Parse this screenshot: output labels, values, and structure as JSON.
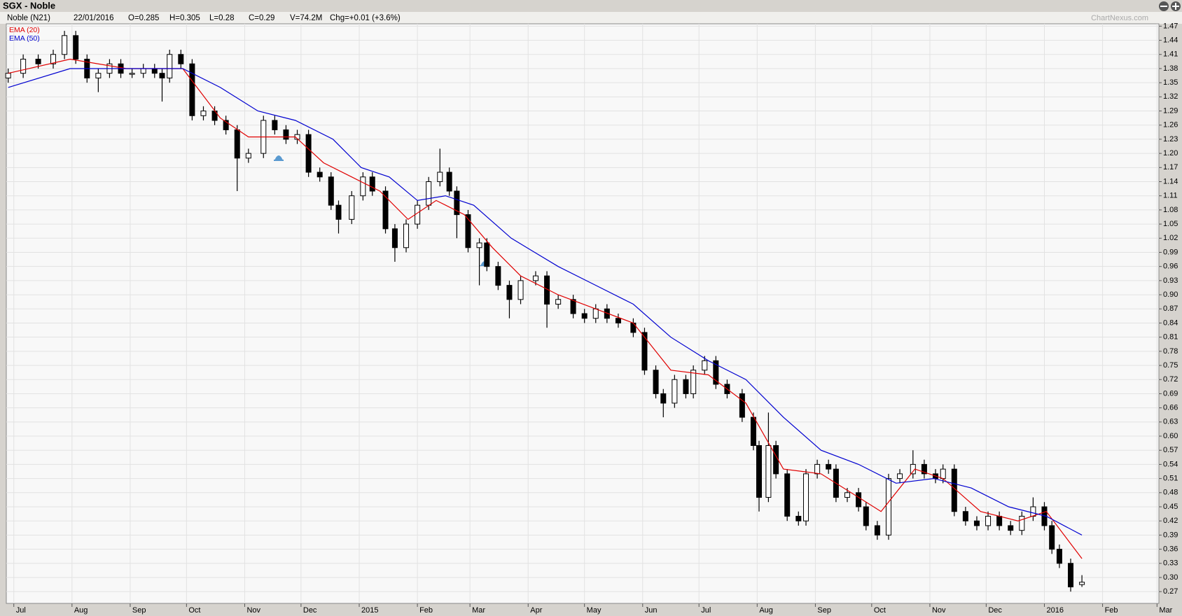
{
  "chart_data": {
    "type": "candlestick",
    "title": "SGX - Noble",
    "info": [
      "Noble (N21)",
      "22/01/2016",
      "O=0.285",
      "H=0.305",
      "L=0.28",
      "C=0.29",
      "V=74.2M",
      "Chg=+0.01 (+3.6%)"
    ],
    "watermark": "ChartNexus.com",
    "up_color": "#ffffff",
    "down_color": "#000000",
    "candles": {
      "x": [
        -3,
        5,
        13,
        21,
        27,
        33,
        39,
        45,
        51,
        57,
        63,
        69,
        75,
        79,
        83,
        89,
        95,
        101,
        107,
        113,
        119,
        125,
        133,
        139,
        145,
        151,
        157,
        163,
        169,
        173,
        180,
        186,
        191,
        198,
        203,
        209,
        215,
        221,
        227,
        232,
        236,
        242,
        248,
        252,
        258,
        264,
        270,
        278,
        284,
        290,
        298,
        304,
        310,
        316,
        322,
        330,
        336,
        342,
        346,
        352,
        358,
        362,
        368,
        374,
        380,
        388,
        394,
        397,
        402,
        406,
        412,
        418,
        422,
        428,
        434,
        438,
        444,
        450,
        454,
        460,
        466,
        472,
        479,
        485,
        491,
        495,
        501,
        507,
        513,
        519,
        525,
        531,
        537,
        543,
        549,
        553,
        557,
        563,
        569
      ],
      "open": [
        1.36,
        1.37,
        1.4,
        1.39,
        1.41,
        1.45,
        1.4,
        1.36,
        1.37,
        1.39,
        1.37,
        1.37,
        1.38,
        1.37,
        1.36,
        1.41,
        1.39,
        1.28,
        1.29,
        1.27,
        1.25,
        1.19,
        1.2,
        1.27,
        1.25,
        1.23,
        1.24,
        1.16,
        1.15,
        1.09,
        1.06,
        1.11,
        1.15,
        1.12,
        1.04,
        1.0,
        1.05,
        1.09,
        1.14,
        1.16,
        1.12,
        1.07,
        1.0,
        1.01,
        0.96,
        0.92,
        0.89,
        0.93,
        0.94,
        0.88,
        0.89,
        0.86,
        0.85,
        0.87,
        0.85,
        0.84,
        0.82,
        0.74,
        0.69,
        0.67,
        0.72,
        0.69,
        0.74,
        0.76,
        0.71,
        0.69,
        0.64,
        0.58,
        0.47,
        0.58,
        0.52,
        0.43,
        0.42,
        0.52,
        0.54,
        0.53,
        0.47,
        0.48,
        0.45,
        0.41,
        0.39,
        0.51,
        0.52,
        0.54,
        0.52,
        0.51,
        0.53,
        0.44,
        0.42,
        0.41,
        0.43,
        0.41,
        0.4,
        0.43,
        0.45,
        0.41,
        0.36,
        0.33,
        0.285
      ],
      "high": [
        1.38,
        1.41,
        1.41,
        1.42,
        1.46,
        1.46,
        1.41,
        1.38,
        1.4,
        1.4,
        1.38,
        1.39,
        1.39,
        1.38,
        1.42,
        1.42,
        1.4,
        1.3,
        1.3,
        1.28,
        1.26,
        1.21,
        1.28,
        1.28,
        1.26,
        1.25,
        1.25,
        1.17,
        1.16,
        1.1,
        1.12,
        1.16,
        1.16,
        1.13,
        1.05,
        1.06,
        1.1,
        1.15,
        1.21,
        1.17,
        1.13,
        1.08,
        1.02,
        1.02,
        0.97,
        0.93,
        0.94,
        0.95,
        0.95,
        0.9,
        0.9,
        0.87,
        0.88,
        0.88,
        0.86,
        0.85,
        0.83,
        0.75,
        0.7,
        0.73,
        0.73,
        0.75,
        0.77,
        0.77,
        0.72,
        0.7,
        0.65,
        0.59,
        0.65,
        0.59,
        0.53,
        0.44,
        0.53,
        0.55,
        0.55,
        0.54,
        0.49,
        0.49,
        0.46,
        0.42,
        0.52,
        0.53,
        0.57,
        0.55,
        0.53,
        0.54,
        0.54,
        0.45,
        0.43,
        0.44,
        0.44,
        0.42,
        0.44,
        0.47,
        0.46,
        0.42,
        0.37,
        0.34,
        0.305
      ],
      "low": [
        1.35,
        1.36,
        1.38,
        1.38,
        1.4,
        1.39,
        1.35,
        1.33,
        1.36,
        1.36,
        1.36,
        1.36,
        1.36,
        1.31,
        1.35,
        1.38,
        1.27,
        1.27,
        1.26,
        1.24,
        1.12,
        1.18,
        1.19,
        1.24,
        1.22,
        1.22,
        1.15,
        1.14,
        1.08,
        1.03,
        1.05,
        1.1,
        1.11,
        1.03,
        0.97,
        0.99,
        1.04,
        1.08,
        1.13,
        1.11,
        1.02,
        0.99,
        0.92,
        0.95,
        0.91,
        0.85,
        0.88,
        0.92,
        0.83,
        0.87,
        0.85,
        0.84,
        0.84,
        0.84,
        0.83,
        0.81,
        0.73,
        0.68,
        0.64,
        0.66,
        0.68,
        0.68,
        0.73,
        0.7,
        0.68,
        0.63,
        0.57,
        0.44,
        0.46,
        0.51,
        0.42,
        0.41,
        0.41,
        0.51,
        0.52,
        0.46,
        0.46,
        0.44,
        0.4,
        0.38,
        0.38,
        0.5,
        0.51,
        0.51,
        0.5,
        0.5,
        0.43,
        0.41,
        0.4,
        0.4,
        0.4,
        0.39,
        0.39,
        0.42,
        0.4,
        0.35,
        0.32,
        0.27,
        0.28
      ],
      "close": [
        1.37,
        1.4,
        1.39,
        1.41,
        1.45,
        1.4,
        1.36,
        1.37,
        1.39,
        1.37,
        1.37,
        1.38,
        1.37,
        1.36,
        1.41,
        1.39,
        1.28,
        1.29,
        1.27,
        1.25,
        1.19,
        1.2,
        1.27,
        1.25,
        1.23,
        1.24,
        1.16,
        1.15,
        1.09,
        1.06,
        1.11,
        1.15,
        1.12,
        1.04,
        1.0,
        1.05,
        1.09,
        1.14,
        1.16,
        1.12,
        1.07,
        1.0,
        1.01,
        0.96,
        0.92,
        0.89,
        0.93,
        0.94,
        0.88,
        0.89,
        0.86,
        0.85,
        0.87,
        0.85,
        0.84,
        0.82,
        0.74,
        0.69,
        0.67,
        0.72,
        0.69,
        0.74,
        0.76,
        0.71,
        0.69,
        0.64,
        0.58,
        0.47,
        0.58,
        0.52,
        0.43,
        0.42,
        0.52,
        0.54,
        0.53,
        0.47,
        0.48,
        0.45,
        0.41,
        0.39,
        0.51,
        0.52,
        0.54,
        0.52,
        0.51,
        0.53,
        0.44,
        0.42,
        0.41,
        0.43,
        0.41,
        0.4,
        0.43,
        0.45,
        0.41,
        0.36,
        0.33,
        0.28,
        0.29
      ]
    },
    "series": [
      {
        "name": "EMA (20)",
        "color": "#e00000",
        "x": [
          -3,
          30,
          60,
          90,
          110,
          125,
          150,
          165,
          180,
          195,
          210,
          225,
          240,
          255,
          270,
          290,
          310,
          330,
          350,
          370,
          390,
          410,
          430,
          450,
          462,
          480,
          495,
          515,
          535,
          550,
          569
        ],
        "values": [
          1.37,
          1.4,
          1.38,
          1.38,
          1.275,
          1.235,
          1.235,
          1.18,
          1.15,
          1.12,
          1.06,
          1.1,
          1.07,
          1.0,
          0.94,
          0.9,
          0.87,
          0.84,
          0.74,
          0.73,
          0.67,
          0.53,
          0.52,
          0.47,
          0.44,
          0.53,
          0.51,
          0.44,
          0.42,
          0.44,
          0.34
        ]
      },
      {
        "name": "EMA (50)",
        "color": "#0000d0",
        "x": [
          -3,
          30,
          60,
          90,
          110,
          130,
          150,
          170,
          185,
          200,
          215,
          230,
          245,
          265,
          290,
          310,
          330,
          350,
          370,
          390,
          410,
          430,
          450,
          470,
          490,
          510,
          530,
          550,
          569
        ],
        "values": [
          1.34,
          1.38,
          1.38,
          1.38,
          1.34,
          1.29,
          1.27,
          1.23,
          1.17,
          1.15,
          1.1,
          1.11,
          1.09,
          1.02,
          0.96,
          0.92,
          0.88,
          0.81,
          0.76,
          0.72,
          0.64,
          0.57,
          0.54,
          0.5,
          0.51,
          0.49,
          0.45,
          0.43,
          0.39
        ]
      }
    ],
    "xlim": [
      -4,
      610
    ],
    "xticks": [
      {
        "value": 0,
        "label": "Jul"
      },
      {
        "value": 31,
        "label": "Aug"
      },
      {
        "value": 62,
        "label": "Sep"
      },
      {
        "value": 92,
        "label": "Oct"
      },
      {
        "value": 123,
        "label": "Nov"
      },
      {
        "value": 153,
        "label": "Dec"
      },
      {
        "value": 184,
        "label": "2015"
      },
      {
        "value": 215,
        "label": "Feb"
      },
      {
        "value": 243,
        "label": "Mar"
      },
      {
        "value": 274,
        "label": "Apr"
      },
      {
        "value": 304,
        "label": "May"
      },
      {
        "value": 335,
        "label": "Jun"
      },
      {
        "value": 365,
        "label": "Jul"
      },
      {
        "value": 396,
        "label": "Aug"
      },
      {
        "value": 427,
        "label": "Sep"
      },
      {
        "value": 457,
        "label": "Oct"
      },
      {
        "value": 488,
        "label": "Nov"
      },
      {
        "value": 518,
        "label": "Dec"
      },
      {
        "value": 549,
        "label": "2016"
      },
      {
        "value": 580,
        "label": "Feb"
      },
      {
        "value": 609,
        "label": "Mar"
      }
    ],
    "ylim": [
      0.245,
      1.475
    ],
    "yticks": [
      0.27,
      {
        "value": 0.3,
        "label": "0.30"
      },
      0.33,
      0.36,
      0.39,
      0.42,
      0.45,
      0.48,
      0.51,
      0.54,
      0.57,
      {
        "value": 0.6,
        "label": "0.60"
      },
      0.63,
      0.66,
      0.69,
      0.72,
      0.75,
      0.78,
      0.81,
      0.84,
      0.87,
      {
        "value": 0.9,
        "label": "0.90"
      },
      0.93,
      0.96,
      0.99,
      1.02,
      1.05,
      1.08,
      1.11,
      1.14,
      1.17,
      {
        "value": 1.2,
        "label": "1.20"
      },
      1.23,
      1.26,
      1.29,
      1.32,
      1.35,
      1.38,
      1.41,
      1.44,
      1.47
    ],
    "grid": true
  }
}
